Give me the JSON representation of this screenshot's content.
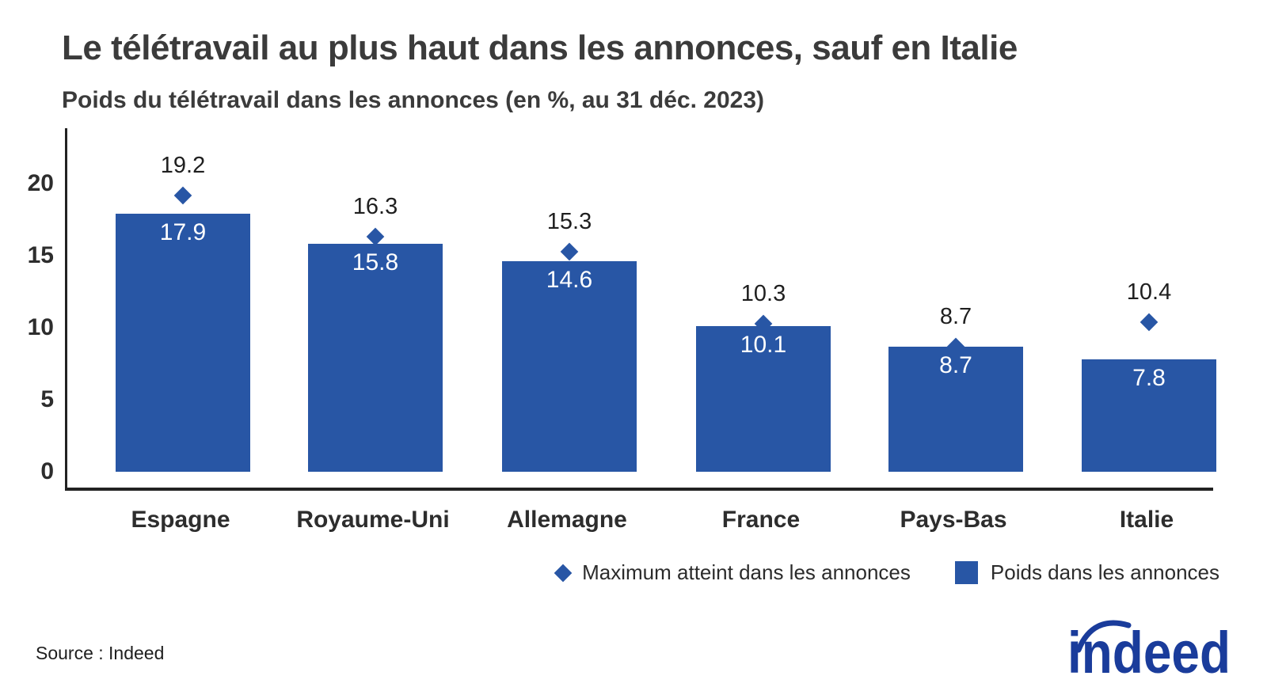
{
  "header": {
    "title": "Le télétravail au plus haut dans les annonces, sauf en Italie",
    "subtitle": "Poids du télétravail dans les annonces (en %, au 31 déc. 2023)"
  },
  "footer": {
    "source": "Source : Indeed",
    "logo_text": "indeed"
  },
  "colors": {
    "bar": "#2856a5",
    "marker": "#2856a5",
    "logo": "#1a3c9b",
    "title_text": "#3b3b3b",
    "axis_text": "#2d2d2d"
  },
  "chart_data": {
    "type": "bar",
    "title": "Le télétravail au plus haut dans les annonces, sauf en Italie",
    "subtitle": "Poids du télétravail dans les annonces (en %, au 31 déc. 2023)",
    "categories": [
      "Espagne",
      "Royaume-Uni",
      "Allemagne",
      "France",
      "Pays-Bas",
      "Italie"
    ],
    "series": [
      {
        "name": "Maximum atteint dans les annonces",
        "type": "scatter",
        "marker": "diamond",
        "values": [
          19.2,
          16.3,
          15.3,
          10.3,
          8.7,
          10.4
        ]
      },
      {
        "name": "Poids dans les annonces",
        "type": "bar",
        "values": [
          17.9,
          15.8,
          14.6,
          10.1,
          8.7,
          7.8
        ]
      }
    ],
    "ylim": [
      0,
      20
    ],
    "yticks": [
      0,
      5,
      10,
      15,
      20
    ],
    "grid": false,
    "legend_position": "bottom",
    "value_labels": true
  }
}
